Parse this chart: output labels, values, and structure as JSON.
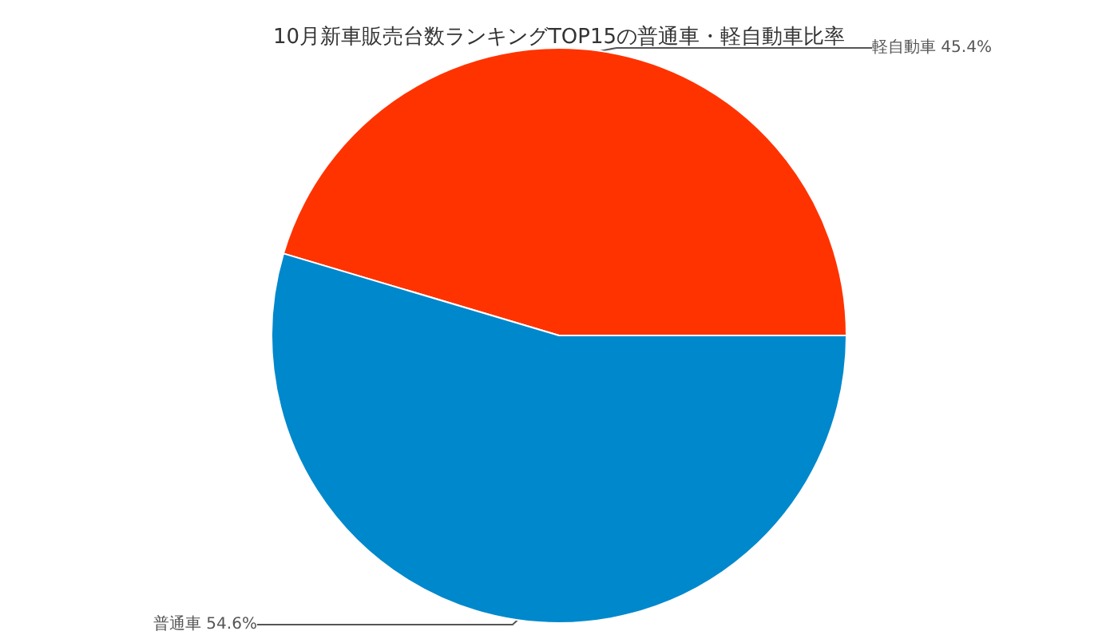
{
  "chart_data": {
    "type": "pie",
    "title": "10月新車販売台数ランキングTOP15の普通車・軽自動車比率",
    "categories": [
      "軽自動車",
      "普通車"
    ],
    "values": [
      45.4,
      54.6
    ],
    "value_labels": [
      "45.4%",
      "54.6%"
    ],
    "colors": [
      "#ff3300",
      "#0088cc"
    ]
  }
}
